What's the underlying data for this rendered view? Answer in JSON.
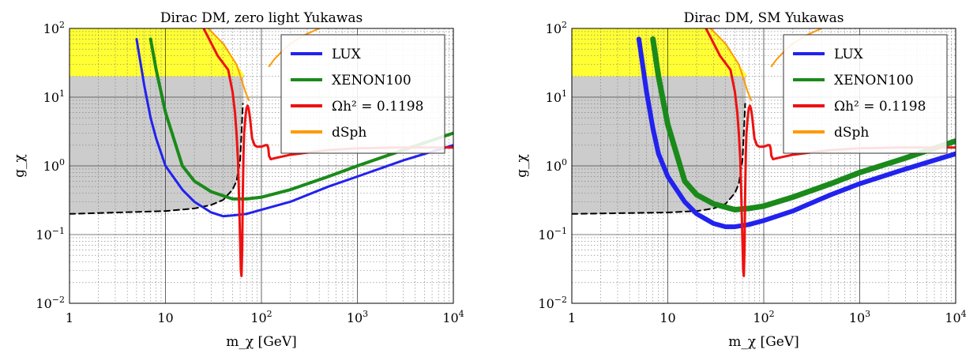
{
  "chart_data": [
    {
      "type": "line",
      "title": "Dirac DM, zero light Yukawas",
      "xlabel": "m_χ [GeV]",
      "ylabel": "g_χ",
      "x_scale": "log",
      "y_scale": "log",
      "xlim": [
        1,
        10000
      ],
      "ylim": [
        0.01,
        100
      ],
      "grid": true,
      "legend_position": "top-right",
      "x_ticks": [
        {
          "v": 1,
          "b": "1",
          "e": ""
        },
        {
          "v": 10,
          "b": "10",
          "e": ""
        },
        {
          "v": 100,
          "b": "10",
          "e": "2"
        },
        {
          "v": 1000,
          "b": "10",
          "e": "3"
        },
        {
          "v": 10000,
          "b": "10",
          "e": "4"
        }
      ],
      "y_ticks": [
        {
          "v": 0.01,
          "b": "10",
          "e": "−2"
        },
        {
          "v": 0.1,
          "b": "10",
          "e": "−1"
        },
        {
          "v": 1,
          "b": "10",
          "e": "0"
        },
        {
          "v": 10,
          "b": "10",
          "e": "1"
        },
        {
          "v": 100,
          "b": "10",
          "e": "2"
        }
      ],
      "series": [
        {
          "name": "LUX",
          "color": "#2222ee",
          "width": 3,
          "x": [
            5,
            6,
            7,
            8,
            10,
            15,
            20,
            30,
            40,
            50,
            70,
            100,
            200,
            500,
            1000,
            3000,
            10000
          ],
          "y": [
            70,
            15,
            5,
            2.5,
            1.0,
            0.45,
            0.3,
            0.21,
            0.185,
            0.19,
            0.2,
            0.23,
            0.3,
            0.5,
            0.7,
            1.2,
            2.0
          ]
        },
        {
          "name": "XENON100",
          "color": "#1a8a1a",
          "width": 4,
          "x": [
            7,
            8,
            10,
            15,
            20,
            30,
            50,
            70,
            100,
            200,
            500,
            1000,
            3000,
            10000
          ],
          "y": [
            70,
            25,
            6,
            1.0,
            0.6,
            0.42,
            0.33,
            0.33,
            0.35,
            0.45,
            0.7,
            1.0,
            1.7,
            3.0
          ]
        },
        {
          "name": "Ωh² = 0.1198",
          "color": "#ee1111",
          "width": 3,
          "x": [
            25,
            35,
            45,
            50,
            53,
            55,
            57,
            58,
            59,
            60,
            61,
            62,
            63,
            64,
            65,
            66,
            68,
            70,
            72,
            74,
            76,
            78,
            80,
            85,
            90,
            100,
            110,
            115,
            118,
            120,
            125,
            140,
            200,
            500,
            1000,
            3000,
            10000
          ],
          "y": [
            100,
            40,
            25,
            12,
            6,
            3,
            1.2,
            0.5,
            0.2,
            0.08,
            0.03,
            0.025,
            0.06,
            0.4,
            1.5,
            3,
            5,
            7,
            7.5,
            6.5,
            5,
            3.5,
            2.5,
            2.0,
            1.9,
            1.9,
            2.0,
            2.0,
            1.8,
            1.4,
            1.25,
            1.3,
            1.45,
            1.7,
            1.8,
            1.85,
            1.85
          ]
        },
        {
          "name": "dSph",
          "color": "#ff9900",
          "width": 2,
          "x": [
            28,
            40,
            55,
            68,
            74
          ],
          "y": [
            100,
            60,
            30,
            12,
            9
          ],
          "x2": [
            120,
            135,
            160,
            200,
            280,
            400
          ],
          "y2": [
            28,
            35,
            45,
            60,
            80,
            100
          ]
        }
      ],
      "shaded_regions": [
        {
          "name": "excluded-gray",
          "color": "#cccccc",
          "note": "gray"
        },
        {
          "name": "excluded-yellow",
          "color": "#ffff33",
          "note": "yellow"
        }
      ],
      "dashed_curve": {
        "color": "#000000",
        "x": [
          1,
          10,
          20,
          30,
          40,
          50,
          55,
          60,
          62,
          64
        ],
        "y": [
          0.2,
          0.22,
          0.24,
          0.27,
          0.32,
          0.45,
          0.6,
          1.2,
          3,
          8
        ]
      },
      "gray_boundary": {
        "x": [
          4.2,
          5,
          7,
          10,
          20,
          40,
          50,
          60,
          65
        ],
        "y": [
          20,
          20,
          20,
          20,
          20,
          20,
          20,
          20,
          20
        ]
      },
      "legend": [
        "LUX",
        "XENON100",
        "Ωh² = 0.1198",
        "dSph"
      ]
    },
    {
      "type": "line",
      "title": "Dirac DM, SM Yukawas",
      "xlabel": "m_χ [GeV]",
      "ylabel": "g_χ",
      "x_scale": "log",
      "y_scale": "log",
      "xlim": [
        1,
        10000
      ],
      "ylim": [
        0.01,
        100
      ],
      "grid": true,
      "legend_position": "top-right",
      "x_ticks": [
        {
          "v": 1,
          "b": "1",
          "e": ""
        },
        {
          "v": 10,
          "b": "10",
          "e": ""
        },
        {
          "v": 100,
          "b": "10",
          "e": "2"
        },
        {
          "v": 1000,
          "b": "10",
          "e": "3"
        },
        {
          "v": 10000,
          "b": "10",
          "e": "4"
        }
      ],
      "y_ticks": [
        {
          "v": 0.01,
          "b": "10",
          "e": "−2"
        },
        {
          "v": 0.1,
          "b": "10",
          "e": "−1"
        },
        {
          "v": 1,
          "b": "10",
          "e": "0"
        },
        {
          "v": 10,
          "b": "10",
          "e": "1"
        },
        {
          "v": 100,
          "b": "10",
          "e": "2"
        }
      ],
      "series": [
        {
          "name": "LUX",
          "color": "#2222ee",
          "width": 6,
          "x": [
            5,
            6,
            7,
            8,
            10,
            15,
            20,
            30,
            40,
            50,
            70,
            100,
            200,
            500,
            1000,
            3000,
            10000
          ],
          "y": [
            70,
            12,
            3.5,
            1.5,
            0.7,
            0.3,
            0.2,
            0.145,
            0.13,
            0.13,
            0.14,
            0.16,
            0.22,
            0.38,
            0.55,
            0.9,
            1.5
          ]
        },
        {
          "name": "XENON100",
          "color": "#1a8a1a",
          "width": 7,
          "x": [
            7,
            8,
            10,
            15,
            20,
            30,
            50,
            70,
            100,
            200,
            500,
            1000,
            3000,
            10000
          ],
          "y": [
            70,
            20,
            4,
            0.6,
            0.38,
            0.28,
            0.23,
            0.24,
            0.26,
            0.35,
            0.55,
            0.8,
            1.3,
            2.3
          ]
        },
        {
          "name": "Ωh² = 0.1198",
          "color": "#ee1111",
          "width": 3,
          "x": [
            25,
            35,
            45,
            50,
            53,
            55,
            57,
            58,
            59,
            60,
            61,
            62,
            63,
            64,
            65,
            66,
            68,
            70,
            72,
            74,
            76,
            78,
            80,
            85,
            90,
            100,
            110,
            115,
            118,
            120,
            125,
            140,
            200,
            500,
            1000,
            3000,
            10000
          ],
          "y": [
            100,
            40,
            25,
            12,
            6,
            3,
            1.2,
            0.5,
            0.2,
            0.08,
            0.03,
            0.025,
            0.06,
            0.4,
            1.5,
            3,
            5,
            7,
            7.5,
            6.5,
            5,
            3.5,
            2.5,
            2.0,
            1.9,
            1.9,
            2.0,
            2.0,
            1.8,
            1.4,
            1.25,
            1.3,
            1.45,
            1.7,
            1.8,
            1.85,
            1.85
          ]
        },
        {
          "name": "dSph",
          "color": "#ff9900",
          "width": 2,
          "x": [
            28,
            40,
            55,
            68,
            74
          ],
          "y": [
            100,
            60,
            30,
            12,
            9
          ],
          "x2": [
            120,
            135,
            160,
            200,
            280,
            400
          ],
          "y2": [
            28,
            35,
            45,
            60,
            80,
            100
          ]
        }
      ],
      "shaded_regions": [
        {
          "name": "excluded-gray",
          "color": "#cccccc",
          "note": "gray"
        },
        {
          "name": "excluded-yellow",
          "color": "#ffff33",
          "note": "yellow"
        }
      ],
      "dashed_curve": {
        "color": "#000000",
        "x": [
          1,
          10,
          20,
          30,
          40,
          50,
          55,
          60,
          62,
          64
        ],
        "y": [
          0.2,
          0.21,
          0.22,
          0.24,
          0.28,
          0.4,
          0.55,
          1.2,
          3,
          8
        ]
      },
      "gray_boundary": {
        "x": [
          4.2,
          5,
          7,
          10,
          20,
          40,
          50,
          60,
          65
        ],
        "y": [
          20,
          20,
          20,
          20,
          20,
          20,
          20,
          20,
          20
        ]
      },
      "legend": [
        "LUX",
        "XENON100",
        "Ωh² = 0.1198",
        "dSph"
      ]
    }
  ]
}
